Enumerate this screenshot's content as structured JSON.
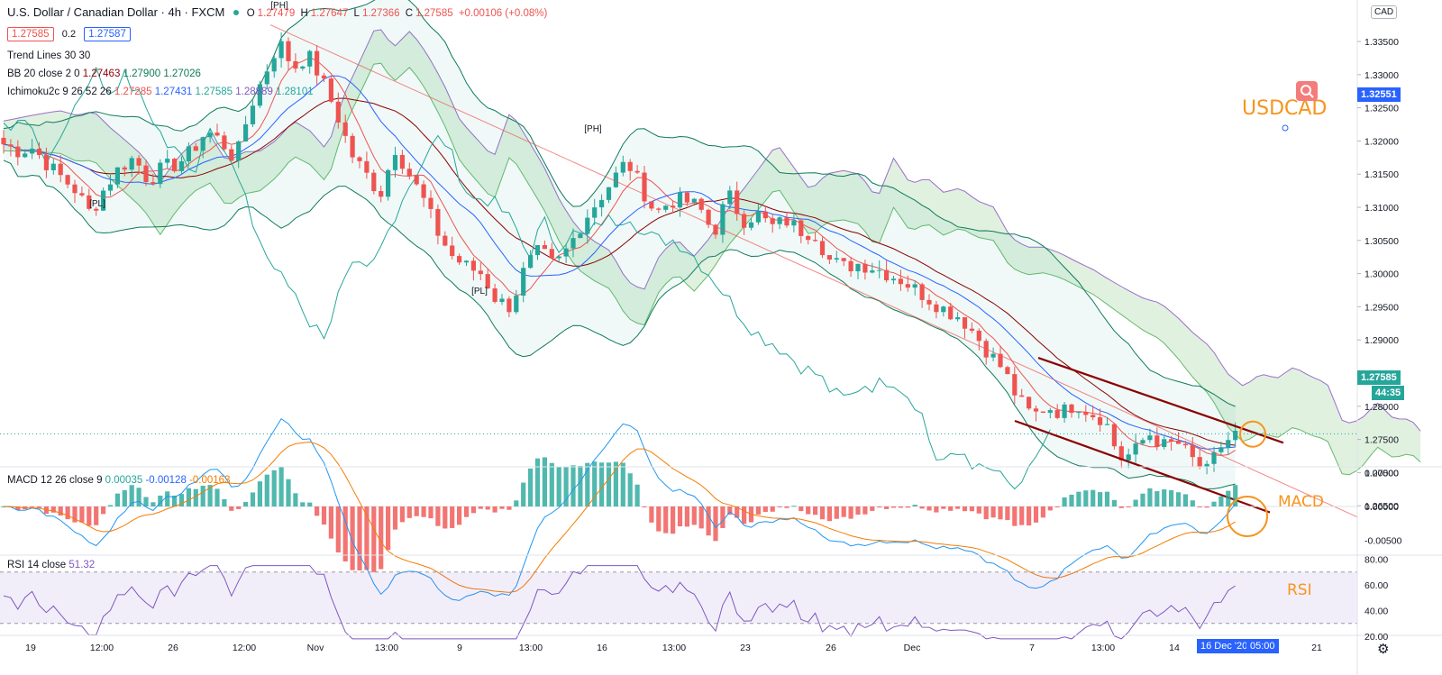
{
  "header": {
    "title": "U.S. Dollar / Canadian Dollar · 4h · FXCM",
    "open_label": "O",
    "open": "1.27479",
    "high_label": "H",
    "high": "1.27647",
    "low_label": "L",
    "low": "1.27366",
    "close_label": "C",
    "close": "1.27585",
    "change": "+0.00106 (+0.08%)",
    "sell": "1.27585",
    "spread": "0.2",
    "buy": "1.27587"
  },
  "indicators": {
    "trend_lines": "Trend Lines 30 30",
    "bb": {
      "label": "BB 20 close 2 0",
      "v1": "1.27463",
      "v2": "1.27900",
      "v3": "1.27026"
    },
    "ichimoku": {
      "label": "Ichimoku2c 9 26 52 26",
      "v1": "1.27285",
      "v2": "1.27431",
      "v3": "1.27585",
      "v4": "1.28889",
      "v5": "1.28101"
    },
    "macd": {
      "label": "MACD 12 26 close 9",
      "v1": "0.00035",
      "v2": "-0.00128",
      "v3": "-0.00163"
    },
    "rsi": {
      "label": "RSI 14 close",
      "v1": "51.32"
    }
  },
  "annotations": {
    "usdcad": "USDCAD",
    "macd": "MACD",
    "rsi": "RSI"
  },
  "price_axis": {
    "currency": "CAD",
    "ticks": [
      "1.33500",
      "1.33000",
      "1.32500",
      "1.32000",
      "1.31500",
      "1.31000",
      "1.30500",
      "1.30000",
      "1.29500",
      "1.29000",
      "1.28500",
      "1.28000",
      "1.27500",
      "1.27000",
      "1.26500"
    ],
    "marker_label": "1.32551",
    "last_price": "1.27585",
    "countdown": "44:35"
  },
  "macd_axis": {
    "ticks": [
      "0.00500",
      "0.00000",
      "-0.00500"
    ]
  },
  "rsi_axis": {
    "ticks": [
      "80.00",
      "60.00",
      "40.00",
      "20.00"
    ]
  },
  "time_axis": {
    "ticks": [
      "19",
      "12:00",
      "26",
      "12:00",
      "Nov",
      "13:00",
      "9",
      "13:00",
      "16",
      "13:00",
      "23",
      "26",
      "Dec",
      "7",
      "13:00",
      "14",
      "21"
    ],
    "current_date": "16 Dec '20",
    "current_time": "05:00"
  },
  "pivot_labels": [
    "[PH]",
    "[PL]",
    "[PH]",
    "[PL]"
  ],
  "colors": {
    "up": "#26a69a",
    "down": "#ef5350",
    "orange": "#f7941d",
    "channel": "#8b0000",
    "rsi": "#7e57c2"
  },
  "chart_data": {
    "type": "candlestick",
    "title": "U.S. Dollar / Canadian Dollar · 4h · FXCM",
    "y_range": [
      1.262,
      1.338
    ],
    "close_series": [
      1.3195,
      1.3185,
      1.319,
      1.3165,
      1.3145,
      1.3125,
      1.309,
      1.313,
      1.316,
      1.3175,
      1.314,
      1.316,
      1.3165,
      1.3185,
      1.3215,
      1.32,
      1.317,
      1.325,
      1.33,
      1.335,
      1.331,
      1.333,
      1.329,
      1.324,
      1.318,
      1.315,
      1.312,
      1.319,
      1.315,
      1.311,
      1.306,
      1.3025,
      1.301,
      1.3,
      1.296,
      1.295,
      1.301,
      1.3035,
      1.301,
      1.304,
      1.308,
      1.311,
      1.314,
      1.317,
      1.313,
      1.309,
      1.311,
      1.311,
      1.31,
      1.306,
      1.312,
      1.308,
      1.309,
      1.307,
      1.308,
      1.3065,
      1.306,
      1.302,
      1.301,
      1.3015,
      1.301,
      1.3,
      1.299,
      1.2975,
      1.296,
      1.2945,
      1.2935,
      1.291,
      1.288,
      1.2855,
      1.281,
      1.2785,
      1.28,
      1.279,
      1.2805,
      1.279,
      1.278,
      1.272,
      1.273,
      1.276,
      1.274,
      1.2745,
      1.272,
      1.27,
      1.274,
      1.2758
    ],
    "channel_upper": [
      [
        1.2873,
        1.2745
      ]
    ],
    "channel_lower": [
      [
        1.2778,
        1.264
      ]
    ],
    "macd_range": [
      -0.0055,
      0.0055
    ],
    "rsi_range": [
      15,
      85
    ],
    "rsi_band": [
      30,
      70
    ]
  }
}
